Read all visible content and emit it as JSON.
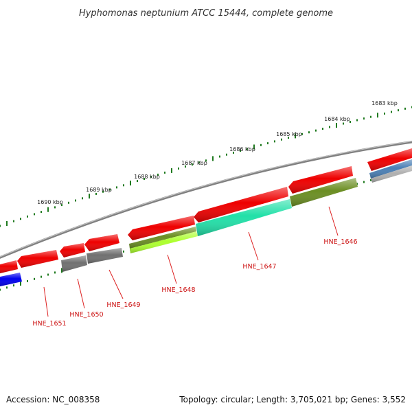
{
  "title": "Hyphomonas neptunium ATCC 15444, complete genome",
  "footer": {
    "accession": "Accession: NC_008358",
    "stats": "Topology: circular; Length: 3,705,021 bp; Genes: 3,552"
  },
  "colors": {
    "backbone": "#808080",
    "tick": "#1f7a1f",
    "gene_label": "#cc1111",
    "label_line": "#dd2222"
  },
  "position_labels": [
    "1683 kbp",
    "1684 kbp",
    "1685 kbp",
    "1686 kbp",
    "1687 kbp",
    "1688 kbp",
    "1689 kbp",
    "1690 kbp"
  ],
  "gene_labels": [
    "HNE_1646",
    "HNE_1647",
    "HNE_1648",
    "HNE_1649",
    "HNE_1650",
    "HNE_1651"
  ],
  "features": [
    {
      "kind": "cds",
      "strand": "reverse",
      "color": "#ee0000"
    },
    {
      "kind": "cds",
      "strand": "reverse",
      "color": "#ee0000"
    },
    {
      "kind": "cds",
      "strand": "reverse",
      "color": "#ee0000"
    },
    {
      "kind": "cds",
      "strand": "reverse",
      "color": "#ee0000"
    },
    {
      "kind": "cds",
      "strand": "reverse",
      "color": "#ee0000"
    },
    {
      "kind": "cds",
      "strand": "reverse",
      "color": "#ee0000"
    },
    {
      "kind": "cds",
      "strand": "reverse",
      "color": "#ee0000"
    },
    {
      "kind": "cds",
      "strand": "reverse",
      "color": "#ee0000"
    },
    {
      "kind": "cds",
      "strand": "reverse",
      "color": "#ee0000"
    },
    {
      "kind": "cog",
      "color": "#4a7fb5"
    },
    {
      "kind": "cog",
      "color": "#b0b0b0"
    },
    {
      "kind": "cog",
      "color": "#6b8e23"
    },
    {
      "kind": "cog",
      "color": "#22e0a8"
    },
    {
      "kind": "cog",
      "color": "#6b8e23"
    },
    {
      "kind": "cog",
      "color": "#adff2f"
    },
    {
      "kind": "cog",
      "color": "#707070"
    },
    {
      "kind": "cog",
      "color": "#707070"
    },
    {
      "kind": "cog",
      "color": "#0000ee"
    }
  ]
}
